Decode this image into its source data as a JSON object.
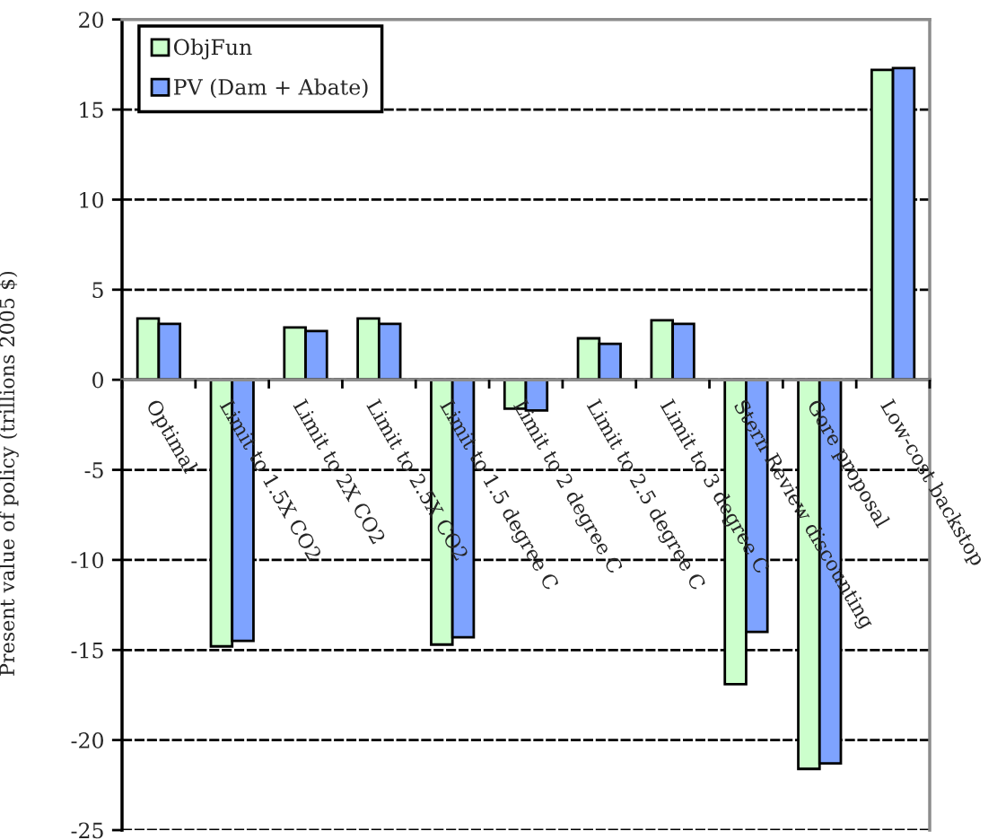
{
  "chart_data": {
    "type": "bar",
    "ylabel": "Present value of policy (trillions 2005 $)",
    "categories": [
      "Optimal",
      "Limit to 1.5X CO2",
      "Limit to 2X CO2",
      "Limit to 2.5X CO2",
      "Limit to 1.5 degree C",
      "Limit to 2 degree C",
      "Limit to 2.5 degree C",
      "Limit to 3 degree C",
      "Stern Review discounting",
      "Gore proposal",
      "Low-cost backstop"
    ],
    "series": [
      {
        "name": "ObjFun",
        "color": "#ccffcc",
        "values": [
          3.4,
          -14.8,
          2.9,
          3.4,
          -14.7,
          -1.6,
          2.3,
          3.3,
          -16.9,
          -21.6,
          17.2
        ]
      },
      {
        "name": "PV (Dam + Abate)",
        "color": "#7ea3ff",
        "values": [
          3.1,
          -14.5,
          2.7,
          3.1,
          -14.3,
          -1.7,
          2.0,
          3.1,
          -14.0,
          -21.3,
          17.3
        ]
      }
    ],
    "ylim": [
      -25,
      20
    ],
    "yticks": [
      -25,
      -20,
      -15,
      -10,
      -5,
      0,
      5,
      10,
      15,
      20
    ],
    "grid": "y",
    "legend": "top left"
  }
}
